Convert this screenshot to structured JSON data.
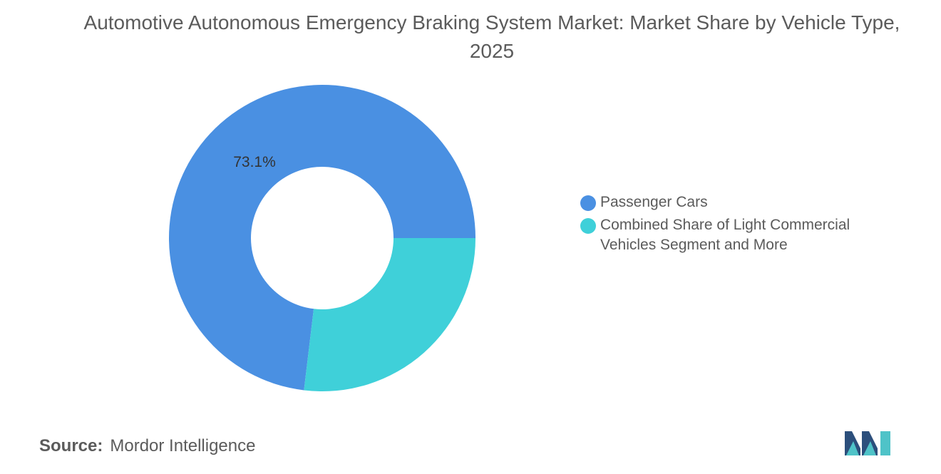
{
  "chart_data": {
    "type": "pie",
    "variant": "donut",
    "title": "Automotive Autonomous Emergency Braking System Market: Market Share by Vehicle Type, 2025",
    "categories": [
      "Passenger Cars",
      "Combined Share of Light Commercial Vehicles Segment and More"
    ],
    "values": [
      73.1,
      26.9
    ],
    "unit": "%",
    "data_labels": [
      "73.1%",
      ""
    ],
    "colors": [
      "#4a90e2",
      "#3fd0d9"
    ],
    "legend_position": "right"
  },
  "source": {
    "label": "Source:",
    "value": "Mordor Intelligence"
  },
  "logo": {
    "icon": "mordor-intelligence-logo"
  }
}
